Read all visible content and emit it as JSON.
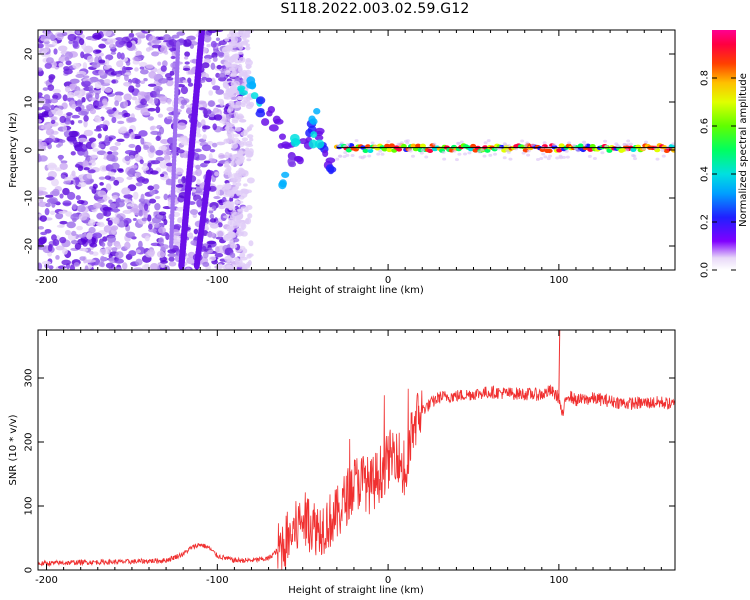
{
  "title": "S118.2022.003.02.59.G12",
  "colors": {
    "snr_line": "#f03030",
    "carrier_fit": "#000000",
    "scatter_hue": "purple-violet"
  },
  "chart_data": [
    {
      "type": "heatmap",
      "xlabel": "Height of straight line (km)",
      "ylabel": "Frequency (Hz)",
      "xlim": [
        -205,
        168
      ],
      "ylim": [
        -25,
        25
      ],
      "xticks": [
        -200,
        -100,
        0,
        100
      ],
      "yticks": [
        -20,
        -10,
        0,
        10,
        20
      ],
      "grid": false,
      "carrier_track": {
        "x_start": -30,
        "x_end": 168,
        "frequency": 0.5
      },
      "colorbar": {
        "label": "Normalized spectral amplitude",
        "range": [
          0,
          1
        ],
        "ticks": [
          "0.0",
          "0.2",
          "0.4",
          "0.6",
          "0.8"
        ]
      }
    },
    {
      "type": "line",
      "xlabel": "Height of straight line (km)",
      "ylabel": "SNR (10 * v/v)",
      "xlim": [
        -205,
        168
      ],
      "ylim": [
        0,
        375
      ],
      "xticks": [
        -200,
        -100,
        0,
        100
      ],
      "yticks": [
        0,
        100,
        200,
        300
      ],
      "grid": false,
      "series": [
        {
          "x": [
            -205,
            -180,
            -150,
            -130,
            -120,
            -115,
            -110,
            -105,
            -100,
            -90,
            -80,
            -70,
            -65,
            -55,
            -50,
            -45,
            -40,
            -35,
            -30,
            -25,
            -20,
            -15,
            -10,
            -5,
            0,
            5,
            10,
            15,
            20,
            25,
            30,
            40,
            50,
            60,
            70,
            80,
            90,
            95,
            100,
            102,
            105,
            110,
            120,
            140,
            160,
            168
          ],
          "values": [
            10,
            12,
            13,
            15,
            25,
            35,
            40,
            35,
            22,
            15,
            15,
            18,
            30,
            60,
            80,
            70,
            65,
            75,
            85,
            110,
            135,
            140,
            130,
            150,
            170,
            190,
            140,
            230,
            250,
            260,
            270,
            272,
            275,
            278,
            276,
            275,
            274,
            280,
            270,
            240,
            275,
            265,
            268,
            260,
            262,
            258
          ]
        }
      ]
    }
  ]
}
